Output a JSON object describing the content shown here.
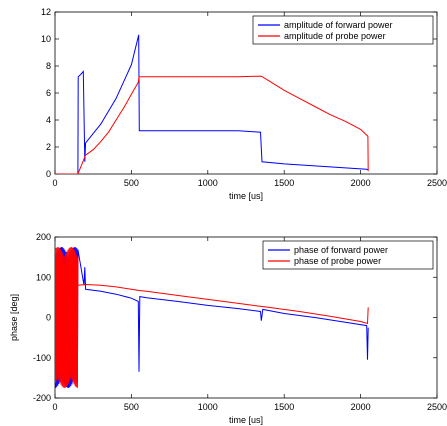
{
  "chart_data": [
    {
      "type": "line",
      "xlabel": "time [us]",
      "ylabel": "",
      "xlim": [
        0,
        2500
      ],
      "ylim": [
        0,
        12
      ],
      "xticks": [
        0,
        500,
        1000,
        1500,
        2000,
        2500
      ],
      "yticks": [
        0,
        2,
        4,
        6,
        8,
        10,
        12
      ],
      "grid": false,
      "legend_position": "top-right",
      "series": [
        {
          "name": "amplitude of forward power",
          "color": "#0000ff",
          "x": [
            0,
            150,
            152,
            170,
            185,
            195,
            200,
            300,
            400,
            500,
            548,
            552,
            600,
            800,
            1000,
            1200,
            1345,
            1355,
            1500,
            1700,
            1900,
            2040,
            2050
          ],
          "y": [
            0,
            0,
            7.2,
            7.4,
            7.6,
            0.9,
            2.3,
            3.7,
            5.6,
            8.1,
            10.3,
            3.2,
            3.2,
            3.2,
            3.2,
            3.2,
            3.1,
            0.9,
            0.75,
            0.6,
            0.45,
            0.35,
            0.3
          ]
        },
        {
          "name": "amplitude of probe power",
          "color": "#ff0000",
          "x": [
            0,
            150,
            200,
            250,
            300,
            350,
            400,
            450,
            500,
            545,
            550,
            600,
            800,
            1000,
            1200,
            1350,
            1400,
            1500,
            1600,
            1700,
            1800,
            1900,
            2000,
            2048,
            2050
          ],
          "y": [
            0,
            0,
            1.4,
            1.8,
            2.4,
            3.1,
            4.0,
            4.9,
            5.9,
            6.8,
            7.2,
            7.2,
            7.2,
            7.2,
            7.2,
            7.25,
            6.9,
            6.2,
            5.6,
            5.0,
            4.4,
            3.9,
            3.3,
            2.8,
            0.2
          ]
        }
      ]
    },
    {
      "type": "line",
      "xlabel": "time [us]",
      "ylabel": "phase [deg]",
      "xlim": [
        0,
        2500
      ],
      "ylim": [
        -200,
        200
      ],
      "xticks": [
        0,
        500,
        1000,
        1500,
        2000,
        2500
      ],
      "yticks": [
        -200,
        -100,
        0,
        100,
        200
      ],
      "grid": false,
      "legend_position": "top-right",
      "series": [
        {
          "name": "phase of forward power",
          "color": "#0000ff",
          "oscillation_range": [
            0,
            150
          ],
          "x": [
            190,
            195,
            200,
            300,
            400,
            500,
            545,
            550,
            555,
            600,
            800,
            1000,
            1200,
            1345,
            1350,
            1360,
            1500,
            1700,
            1900,
            2040,
            2045,
            2050
          ],
          "y": [
            80,
            125,
            70,
            65,
            58,
            48,
            40,
            -135,
            52,
            49,
            40,
            30,
            22,
            15,
            -8,
            20,
            10,
            0,
            -12,
            -20,
            -105,
            -25
          ]
        },
        {
          "name": "phase of probe power",
          "color": "#ff0000",
          "oscillation_range": [
            0,
            150
          ],
          "x": [
            150,
            200,
            300,
            400,
            500,
            550,
            600,
            800,
            1000,
            1200,
            1400,
            1600,
            1800,
            2000,
            2045,
            2050
          ],
          "y": [
            80,
            82,
            80,
            76,
            70,
            67,
            65,
            55,
            45,
            35,
            25,
            15,
            3,
            -10,
            -15,
            25
          ]
        }
      ]
    }
  ]
}
